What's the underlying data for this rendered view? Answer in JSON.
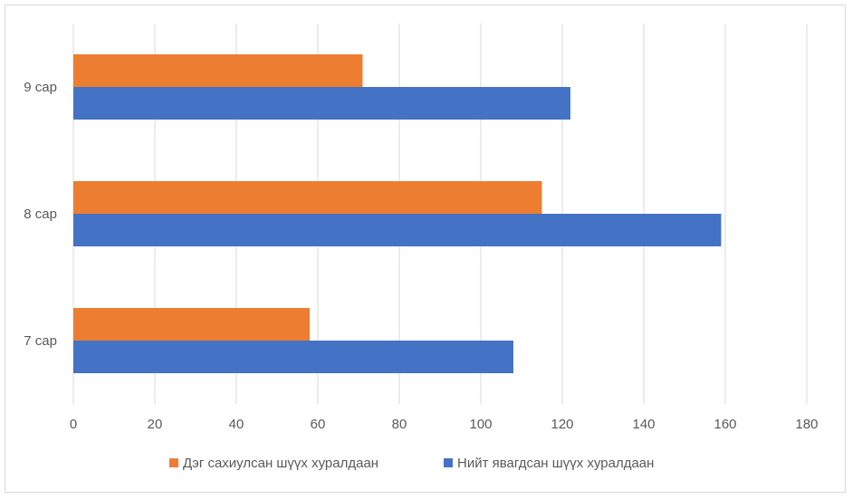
{
  "chart_data": {
    "type": "bar",
    "orientation": "horizontal",
    "categories": [
      "7 сар",
      "8 сар",
      "9 сар"
    ],
    "series": [
      {
        "name": "Дэг сахиулсан шүүх хуралдаан",
        "values": [
          58,
          115,
          71
        ],
        "color": "#ED7D31"
      },
      {
        "name": "Нийт явагдсан шүүх хуралдаан",
        "values": [
          108,
          159,
          122
        ],
        "color": "#4472C4"
      }
    ],
    "x_ticks": [
      "0",
      "20",
      "40",
      "60",
      "80",
      "100",
      "120",
      "140",
      "160",
      "180"
    ],
    "xlim": [
      0,
      180
    ],
    "grid": true,
    "legend_position": "bottom",
    "gridline_color": "#d9d9d9"
  }
}
